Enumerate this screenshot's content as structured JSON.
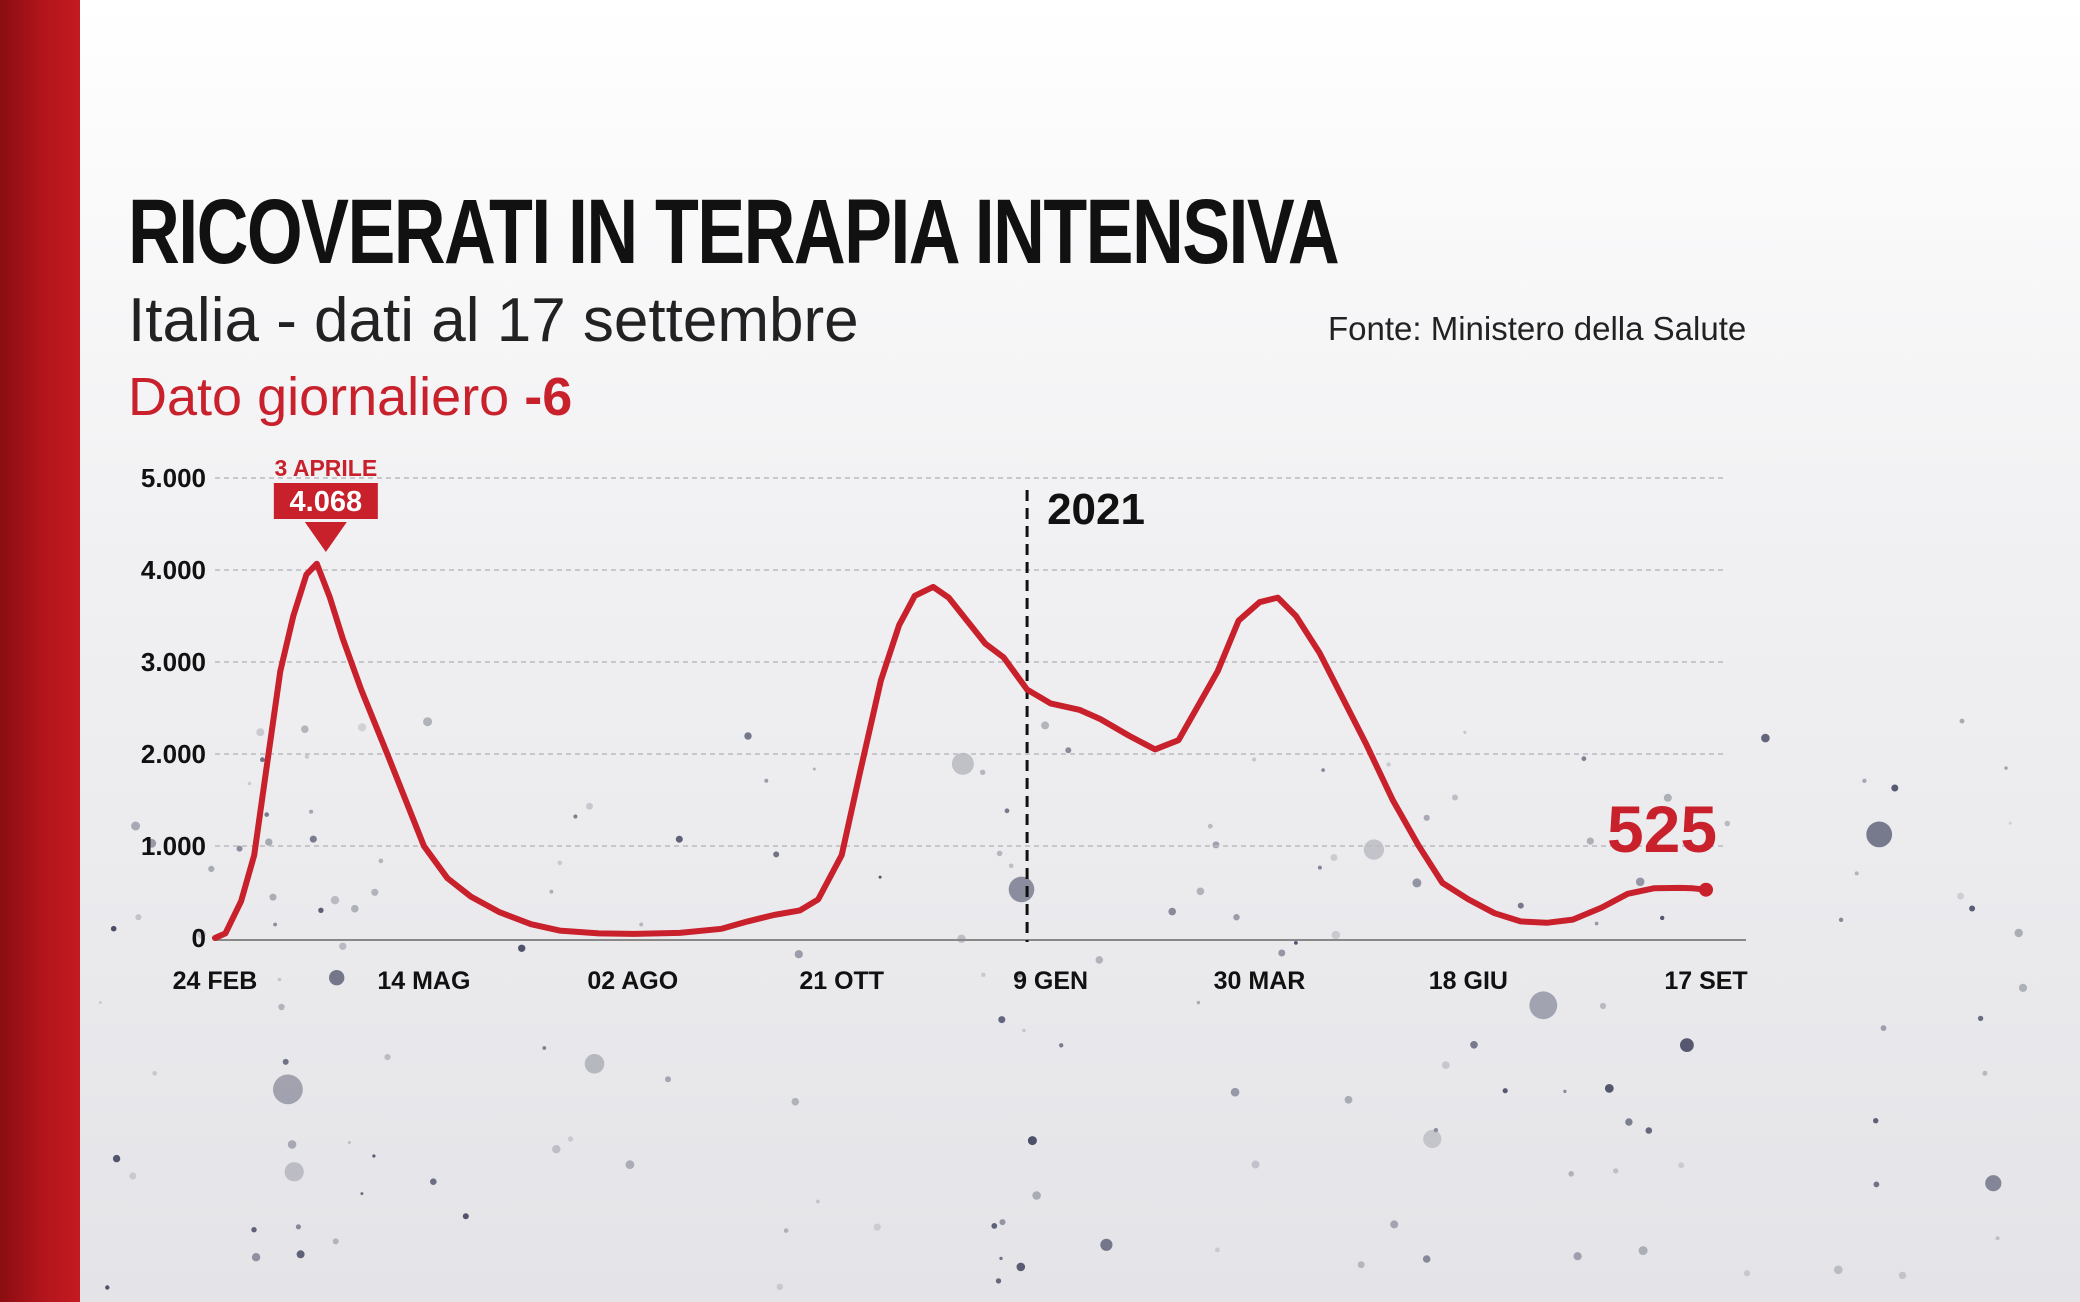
{
  "header": {
    "title": "RICOVERATI IN TERAPIA INTENSIVA",
    "subtitle": "Italia - dati al 17 settembre",
    "source": "Fonte: Ministero della Salute",
    "daily_label": "Dato giornaliero",
    "daily_value": "-6"
  },
  "colors": {
    "accent": "#c8212c",
    "brand_bar": "#b3151c",
    "text": "#111111"
  },
  "chart_data": {
    "type": "line",
    "title": "RICOVERATI IN TERAPIA INTENSIVA",
    "xlabel": "",
    "ylabel": "",
    "ylim": [
      0,
      5000
    ],
    "grid": true,
    "y_ticks": [
      "0",
      "1.000",
      "2.000",
      "3.000",
      "4.000",
      "5.000"
    ],
    "y_tick_values": [
      0,
      1000,
      2000,
      3000,
      4000,
      5000
    ],
    "x_ticks": [
      {
        "label": "24 FEB",
        "date": "2020-02-24"
      },
      {
        "label": "14 MAG",
        "date": "2020-05-14"
      },
      {
        "label": "02 AGO",
        "date": "2020-08-02"
      },
      {
        "label": "21 OTT",
        "date": "2020-10-21"
      },
      {
        "label": "9 GEN",
        "date": "2021-01-09"
      },
      {
        "label": "30 MAR",
        "date": "2021-03-30"
      },
      {
        "label": "18 GIU",
        "date": "2021-06-18"
      },
      {
        "label": "17 SET",
        "date": "2021-09-17",
        "bold": true
      }
    ],
    "x_range": [
      "2020-02-24",
      "2021-09-17"
    ],
    "divider": {
      "date": "2020-12-31",
      "label": "2021"
    },
    "peak_annotation": {
      "date_label": "3 APRILE",
      "value_label": "4.068",
      "date": "2020-04-03",
      "value": 4068
    },
    "last_annotation": {
      "value_label": "525",
      "date": "2021-09-17",
      "value": 525
    },
    "series": [
      {
        "color": "#c8212c",
        "points": [
          [
            "2020-02-24",
            0
          ],
          [
            "2020-02-28",
            50
          ],
          [
            "2020-03-05",
            400
          ],
          [
            "2020-03-10",
            900
          ],
          [
            "2020-03-15",
            1900
          ],
          [
            "2020-03-20",
            2900
          ],
          [
            "2020-03-25",
            3500
          ],
          [
            "2020-03-30",
            3950
          ],
          [
            "2020-04-03",
            4068
          ],
          [
            "2020-04-08",
            3700
          ],
          [
            "2020-04-13",
            3250
          ],
          [
            "2020-04-20",
            2700
          ],
          [
            "2020-04-30",
            2000
          ],
          [
            "2020-05-07",
            1500
          ],
          [
            "2020-05-14",
            1000
          ],
          [
            "2020-05-23",
            650
          ],
          [
            "2020-06-01",
            450
          ],
          [
            "2020-06-12",
            280
          ],
          [
            "2020-06-24",
            150
          ],
          [
            "2020-07-05",
            80
          ],
          [
            "2020-07-20",
            50
          ],
          [
            "2020-08-02",
            45
          ],
          [
            "2020-08-20",
            55
          ],
          [
            "2020-09-05",
            100
          ],
          [
            "2020-09-15",
            180
          ],
          [
            "2020-09-25",
            250
          ],
          [
            "2020-10-05",
            300
          ],
          [
            "2020-10-12",
            420
          ],
          [
            "2020-10-21",
            900
          ],
          [
            "2020-10-28",
            1800
          ],
          [
            "2020-11-05",
            2800
          ],
          [
            "2020-11-12",
            3400
          ],
          [
            "2020-11-18",
            3720
          ],
          [
            "2020-11-25",
            3816
          ],
          [
            "2020-12-01",
            3700
          ],
          [
            "2020-12-08",
            3450
          ],
          [
            "2020-12-15",
            3200
          ],
          [
            "2020-12-22",
            3050
          ],
          [
            "2020-12-31",
            2700
          ],
          [
            "2021-01-09",
            2550
          ],
          [
            "2021-01-20",
            2480
          ],
          [
            "2021-01-28",
            2380
          ],
          [
            "2021-02-08",
            2200
          ],
          [
            "2021-02-18",
            2050
          ],
          [
            "2021-02-27",
            2150
          ],
          [
            "2021-03-05",
            2450
          ],
          [
            "2021-03-14",
            2900
          ],
          [
            "2021-03-22",
            3450
          ],
          [
            "2021-03-30",
            3650
          ],
          [
            "2021-04-06",
            3700
          ],
          [
            "2021-04-13",
            3500
          ],
          [
            "2021-04-22",
            3100
          ],
          [
            "2021-05-01",
            2600
          ],
          [
            "2021-05-10",
            2100
          ],
          [
            "2021-05-20",
            1500
          ],
          [
            "2021-05-30",
            1000
          ],
          [
            "2021-06-08",
            600
          ],
          [
            "2021-06-18",
            420
          ],
          [
            "2021-06-28",
            270
          ],
          [
            "2021-07-08",
            180
          ],
          [
            "2021-07-18",
            165
          ],
          [
            "2021-07-28",
            200
          ],
          [
            "2021-08-08",
            330
          ],
          [
            "2021-08-18",
            480
          ],
          [
            "2021-08-28",
            540
          ],
          [
            "2021-09-07",
            545
          ],
          [
            "2021-09-12",
            540
          ],
          [
            "2021-09-17",
            525
          ]
        ]
      }
    ]
  }
}
